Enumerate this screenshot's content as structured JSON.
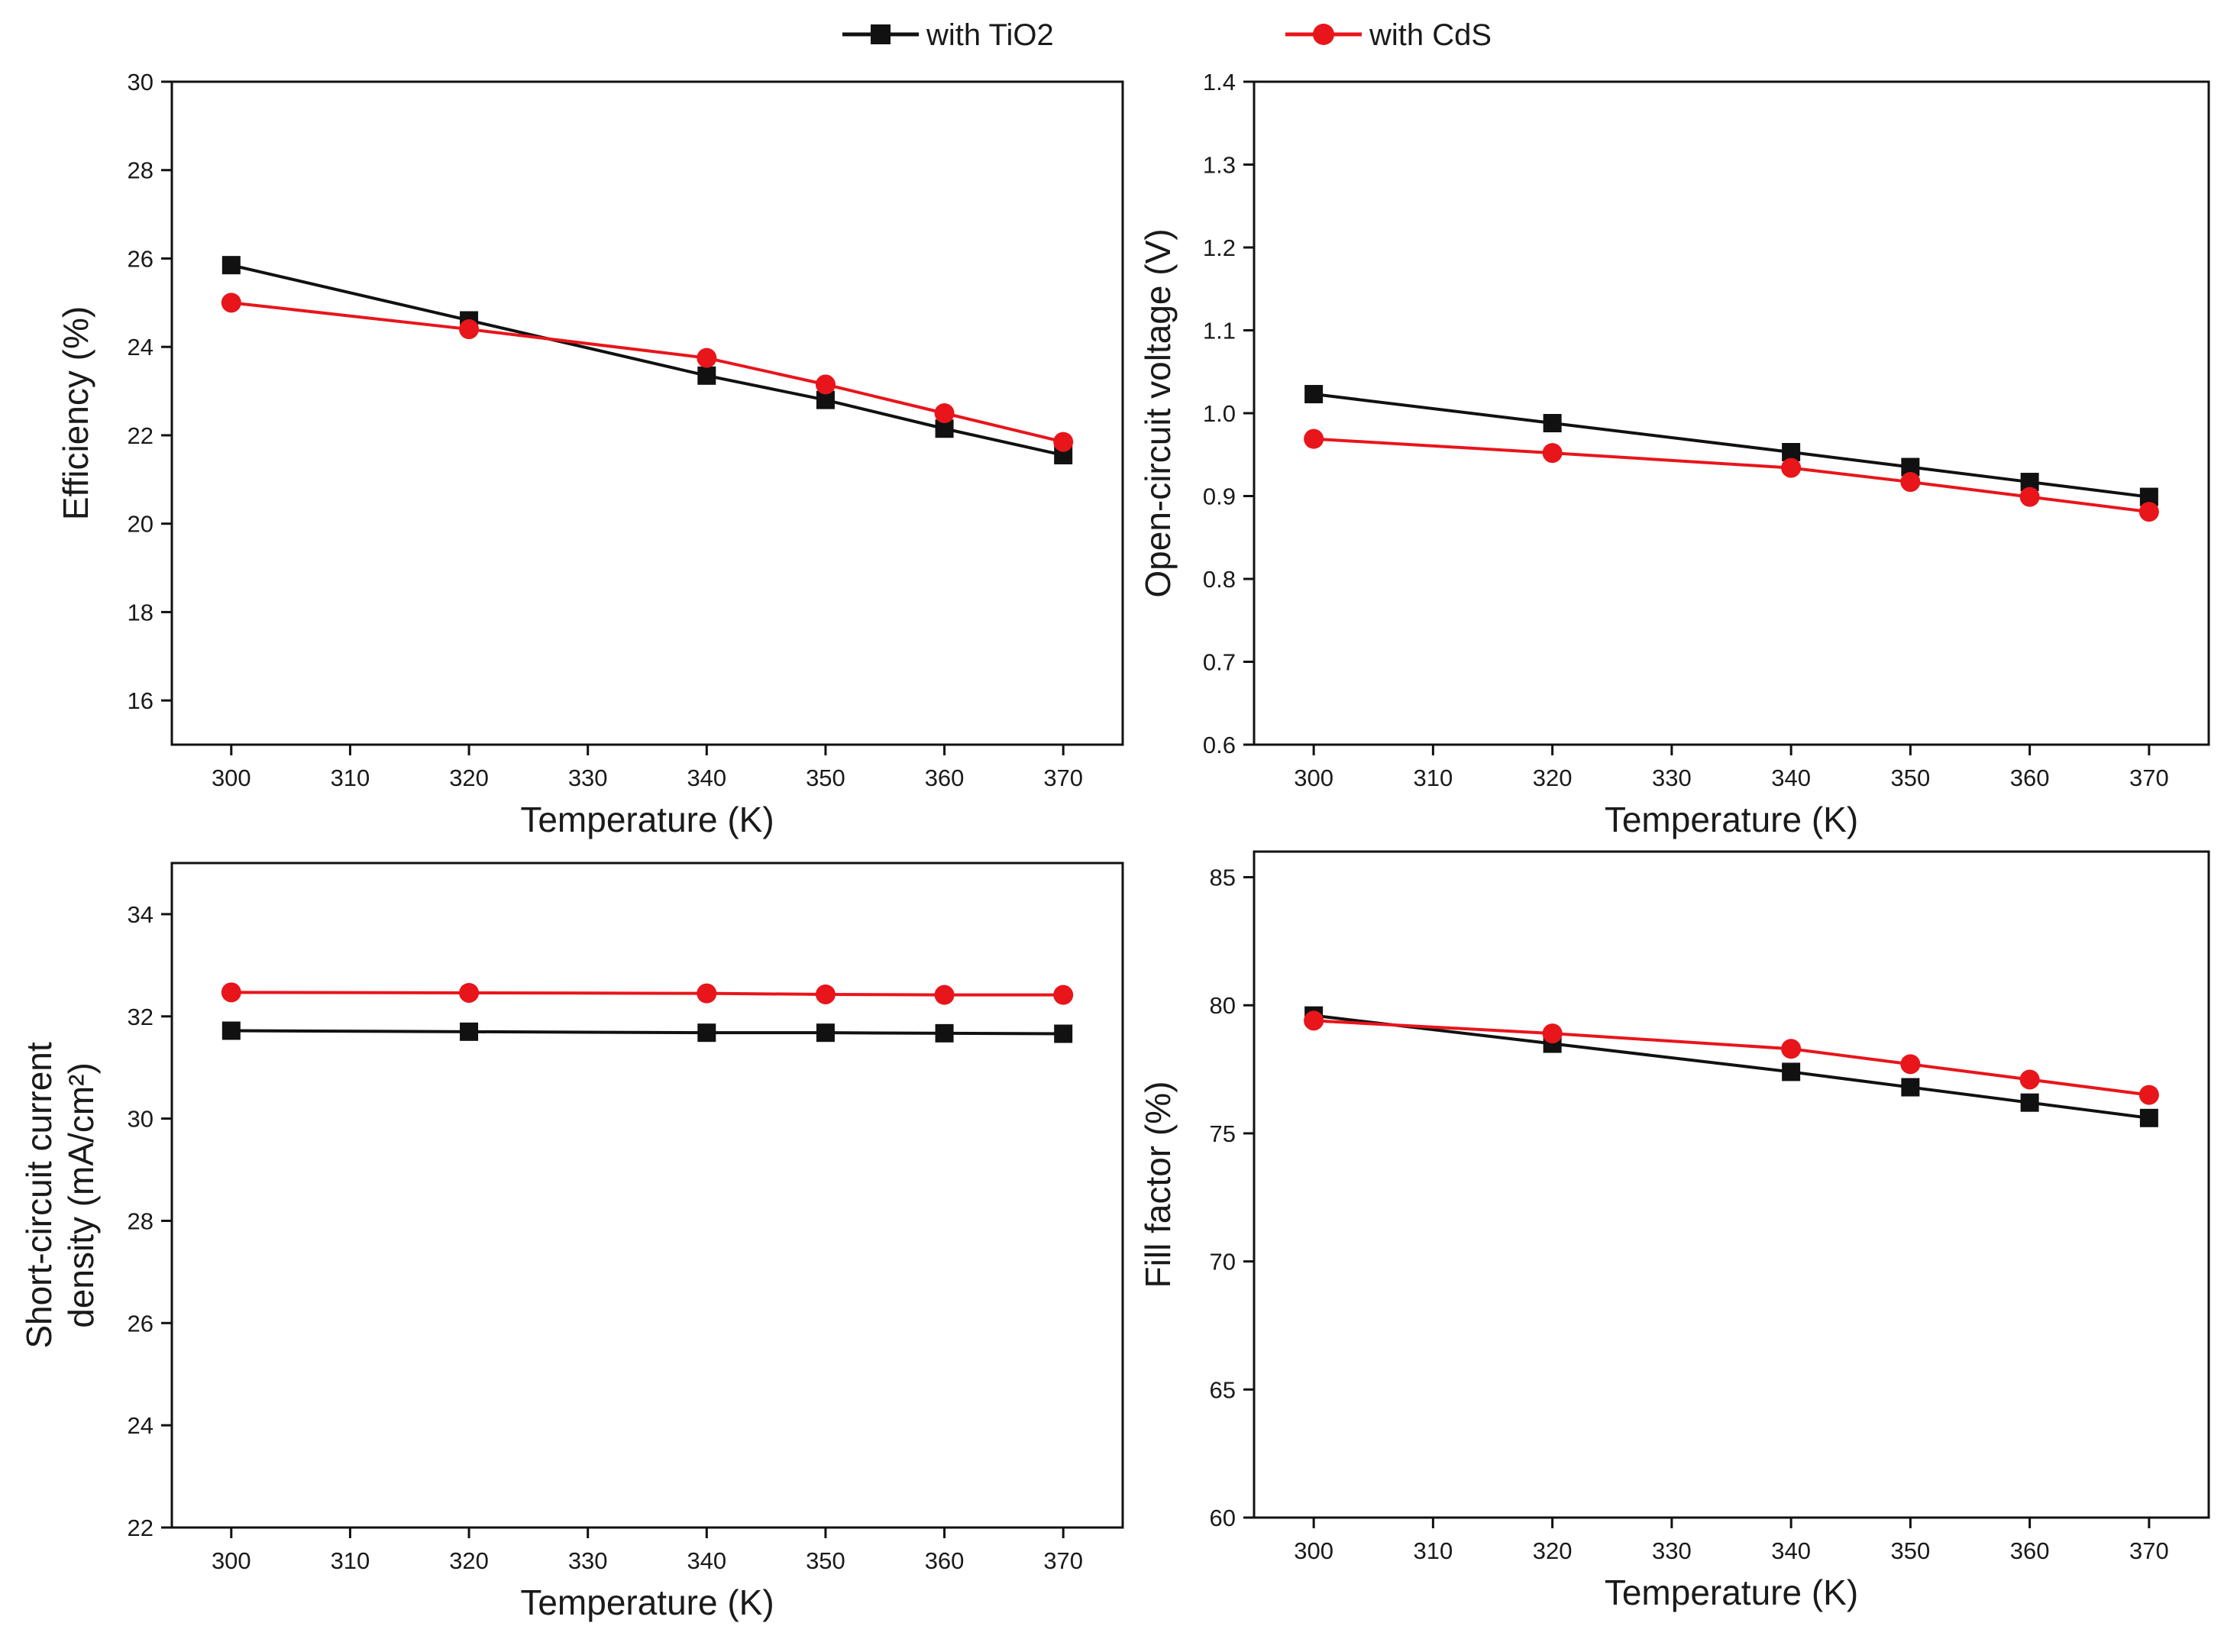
{
  "legend": {
    "items": [
      {
        "label": "with TiO2",
        "color": "#111111",
        "marker": "square"
      },
      {
        "label": "with CdS",
        "color": "#e8151b",
        "marker": "circle"
      }
    ]
  },
  "chart_data": [
    {
      "type": "line",
      "xlabel": "Temperature (K)",
      "ylabel": "Efficiency (%)",
      "xlim": [
        295,
        375
      ],
      "ylim": [
        15,
        30
      ],
      "xticks": [
        300,
        310,
        320,
        330,
        340,
        350,
        360,
        370
      ],
      "yticks": [
        16,
        18,
        20,
        22,
        24,
        26,
        28,
        30
      ],
      "x": [
        300,
        320,
        340,
        350,
        360,
        370
      ],
      "series": [
        {
          "name": "with TiO2",
          "color": "#111111",
          "marker": "square",
          "values": [
            25.85,
            24.6,
            23.35,
            22.8,
            22.15,
            21.55
          ]
        },
        {
          "name": "with CdS",
          "color": "#e8151b",
          "marker": "circle",
          "values": [
            25.0,
            24.4,
            23.75,
            23.15,
            22.5,
            21.85
          ]
        }
      ]
    },
    {
      "type": "line",
      "xlabel": "Temperature (K)",
      "ylabel": "Open-circuit voltage (V)",
      "xlim": [
        295,
        375
      ],
      "ylim": [
        0.6,
        1.4
      ],
      "xticks": [
        300,
        310,
        320,
        330,
        340,
        350,
        360,
        370
      ],
      "yticks": [
        "0.6",
        "0.7",
        "0.8",
        "0.9",
        "1.0",
        "1.1",
        "1.2",
        "1.3",
        "1.4"
      ],
      "x": [
        300,
        320,
        340,
        350,
        360,
        370
      ],
      "series": [
        {
          "name": "with TiO2",
          "color": "#111111",
          "marker": "square",
          "values": [
            1.023,
            0.988,
            0.953,
            0.935,
            0.917,
            0.899
          ]
        },
        {
          "name": "with CdS",
          "color": "#e8151b",
          "marker": "circle",
          "values": [
            0.969,
            0.952,
            0.934,
            0.917,
            0.899,
            0.881
          ]
        }
      ]
    },
    {
      "type": "line",
      "xlabel": "Temperature (K)",
      "ylabel": "Short-circuit current density (mA/cm²)",
      "ylabel_lines": [
        "Short-circuit current",
        "density (mA/cm²)"
      ],
      "xlim": [
        295,
        375
      ],
      "ylim": [
        22,
        35
      ],
      "xticks": [
        300,
        310,
        320,
        330,
        340,
        350,
        360,
        370
      ],
      "yticks": [
        22,
        24,
        26,
        28,
        30,
        32,
        34
      ],
      "x": [
        300,
        320,
        340,
        350,
        360,
        370
      ],
      "series": [
        {
          "name": "with TiO2",
          "color": "#111111",
          "marker": "square",
          "values": [
            31.72,
            31.7,
            31.68,
            31.68,
            31.67,
            31.66
          ]
        },
        {
          "name": "with CdS",
          "color": "#e8151b",
          "marker": "circle",
          "values": [
            32.47,
            32.46,
            32.45,
            32.43,
            32.42,
            32.42
          ]
        }
      ]
    },
    {
      "type": "line",
      "xlabel": "Temperature (K)",
      "ylabel": "Fill factor (%)",
      "xlim": [
        295,
        375
      ],
      "ylim": [
        60,
        86
      ],
      "xticks": [
        300,
        310,
        320,
        330,
        340,
        350,
        360,
        370
      ],
      "yticks": [
        60,
        65,
        70,
        75,
        80,
        85
      ],
      "x": [
        300,
        320,
        340,
        350,
        360,
        370
      ],
      "series": [
        {
          "name": "with TiO2",
          "color": "#111111",
          "marker": "square",
          "values": [
            79.6,
            78.5,
            77.4,
            76.8,
            76.2,
            75.6
          ]
        },
        {
          "name": "with CdS",
          "color": "#e8151b",
          "marker": "circle",
          "values": [
            79.4,
            78.9,
            78.3,
            77.7,
            77.1,
            76.5
          ]
        }
      ]
    }
  ]
}
